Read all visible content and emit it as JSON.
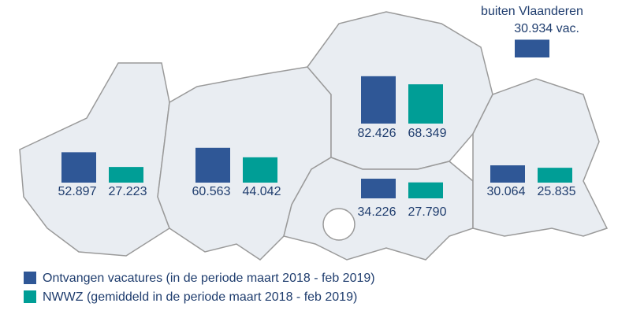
{
  "chart_data": {
    "type": "bar",
    "categories": [
      null,
      null,
      null,
      null,
      null
    ],
    "series": [
      {
        "name": "Ontvangen vacatures (in de periode maart 2018 - feb 2019)",
        "color": "#2f5796",
        "values": [
          52897,
          60563,
          82426,
          34226,
          30064
        ],
        "value_labels": [
          "52.897",
          "60.563",
          "82.426",
          "34.226",
          "30.064"
        ]
      },
      {
        "name": "NWWZ (gemiddeld in de periode maart 2018 - feb 2019)",
        "color": "#009e96",
        "values": [
          27223,
          44042,
          68349,
          27790,
          25835
        ],
        "value_labels": [
          "27.223",
          "44.042",
          "68.349",
          "27.790",
          "25.835"
        ]
      }
    ],
    "outside": {
      "label": "buiten Vlaanderen",
      "value": 30934,
      "value_label": "30.934 vac.",
      "color": "#2f5796"
    }
  }
}
